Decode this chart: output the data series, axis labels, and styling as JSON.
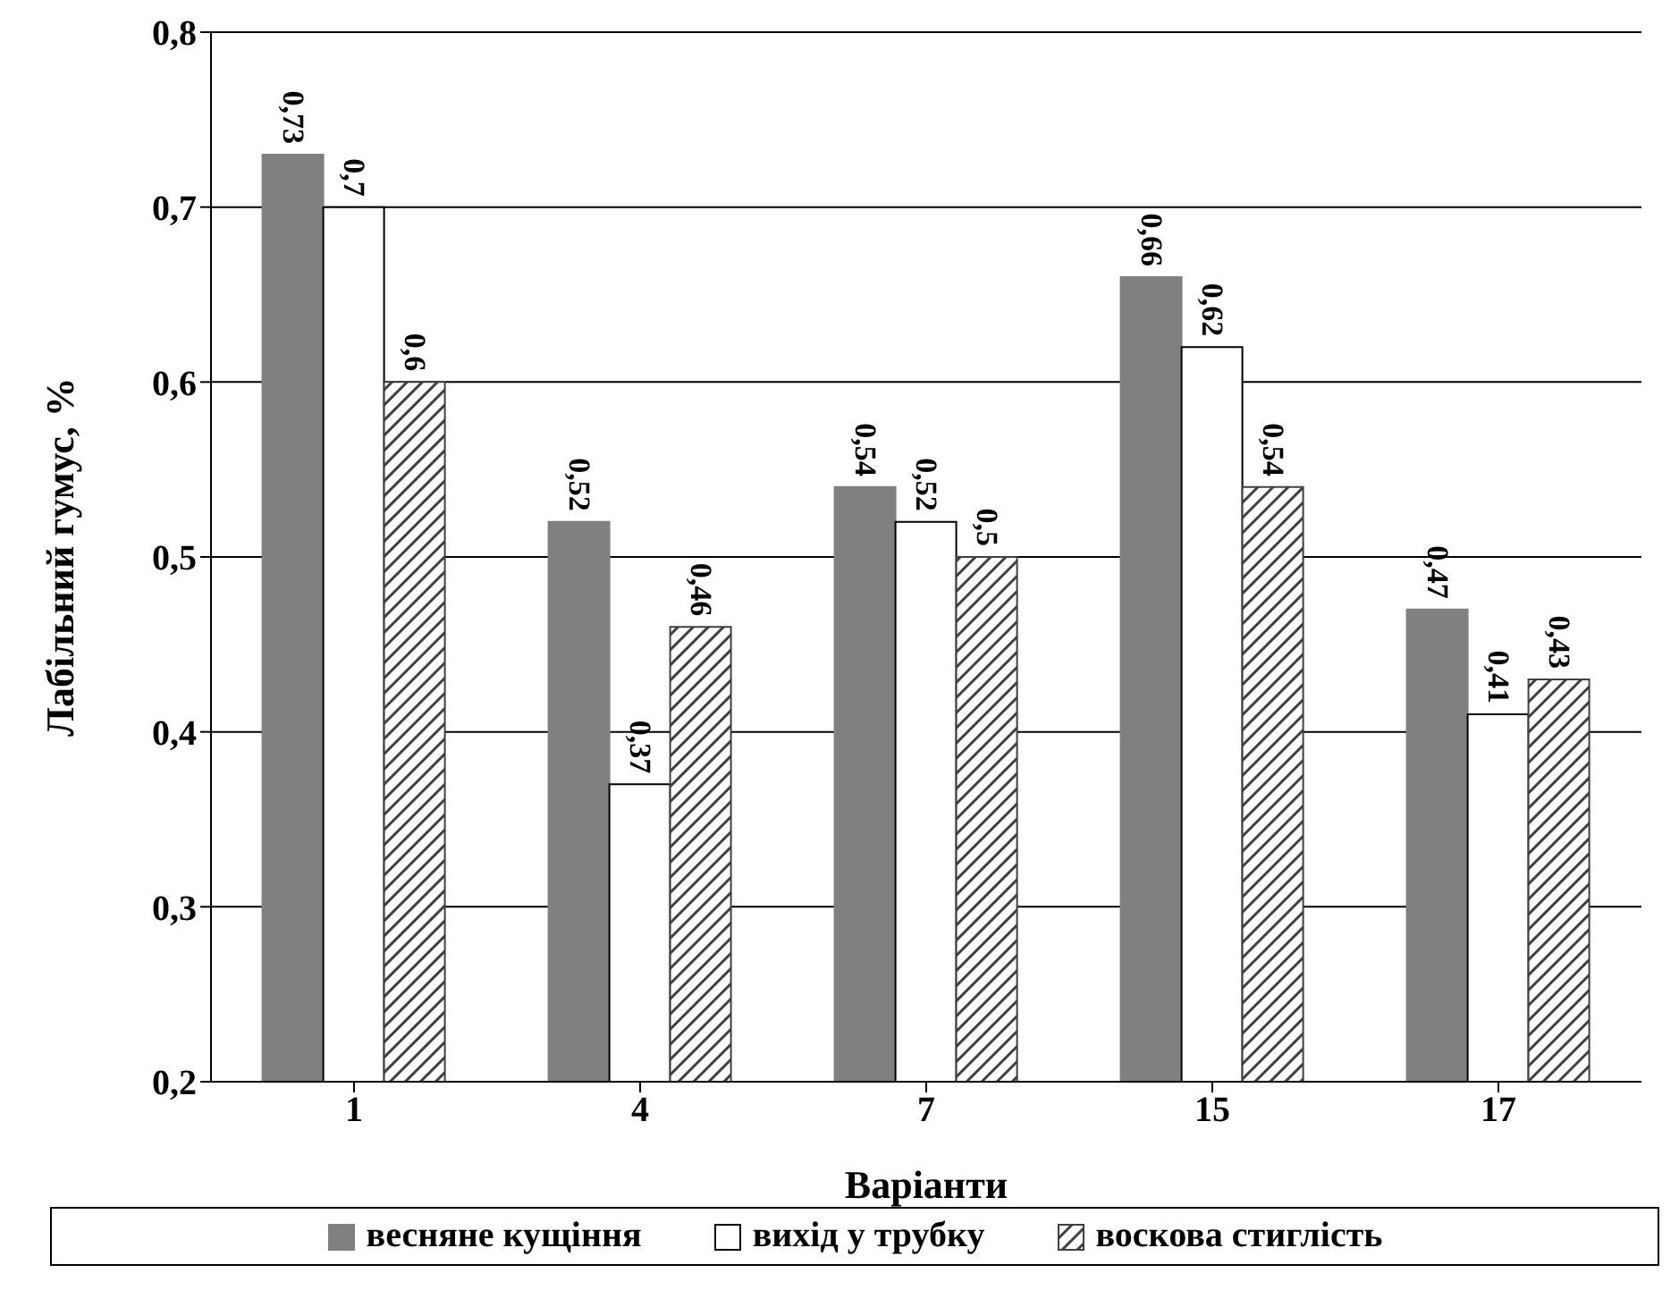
{
  "chart_data": {
    "type": "bar",
    "xlabel": "Варіанти",
    "ylabel": "Лабільний гумус, %",
    "categories": [
      "1",
      "4",
      "7",
      "15",
      "17"
    ],
    "series": [
      {
        "name": "весняне кущіння",
        "color": "#808080",
        "values": [
          0.73,
          0.52,
          0.54,
          0.66,
          0.47
        ],
        "value_labels": [
          "0,73",
          "0,52",
          "0,54",
          "0,66",
          "0,47"
        ]
      },
      {
        "name": "вихід у трубку",
        "color": "#ffffff",
        "values": [
          0.7,
          0.37,
          0.52,
          0.62,
          0.41
        ],
        "value_labels": [
          "0,7",
          "0,37",
          "0,52",
          "0,62",
          "0,41"
        ]
      },
      {
        "name": "воскова стиглість",
        "color": "#404040",
        "values": [
          0.6,
          0.46,
          0.5,
          0.54,
          0.43
        ],
        "value_labels": [
          "0,6",
          "0,46",
          "0,5",
          "0,54",
          "0,43"
        ]
      }
    ],
    "ylim": [
      0.2,
      0.8
    ],
    "yticks": [
      {
        "value": 0.2,
        "label": "0,2"
      },
      {
        "value": 0.3,
        "label": "0,3"
      },
      {
        "value": 0.4,
        "label": "0,4"
      },
      {
        "value": 0.5,
        "label": "0,5"
      },
      {
        "value": 0.6,
        "label": "0,6"
      },
      {
        "value": 0.7,
        "label": "0,7"
      },
      {
        "value": 0.8,
        "label": "0,8"
      }
    ],
    "grid": "y",
    "legend": "bottom"
  }
}
